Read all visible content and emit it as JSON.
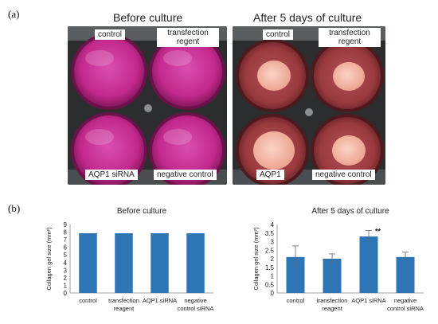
{
  "panel_a": {
    "label": "(a)",
    "before": {
      "title": "Before culture",
      "labels": {
        "top_left": "control",
        "top_right_1": "transfection",
        "top_right_2": "regent",
        "bottom_left": "AQP1 siRNA",
        "bottom_right": "negative control"
      }
    },
    "after": {
      "title": "After 5 days of culture",
      "labels": {
        "top_left": "control",
        "top_right_1": "transfection",
        "top_right_2": "regent",
        "bottom_left": "AQP1",
        "bottom_right": "negative control"
      }
    },
    "colors": {
      "plate": "#2b2d2e",
      "before_medium": "#c3298c",
      "after_medium": "#9a3a3e",
      "gel": "#f3b9a6"
    }
  },
  "panel_b": {
    "label": "(b)"
  },
  "chart_data": [
    {
      "type": "bar",
      "title": "Before culture",
      "categories": [
        [
          "control"
        ],
        [
          "transfection",
          "reagent"
        ],
        [
          "AQP1 siRNA"
        ],
        [
          "negative",
          "control siRNA"
        ]
      ],
      "values": [
        7.85,
        7.85,
        7.85,
        7.85
      ],
      "ylabel": "Collagen gel size (mm²)",
      "ylim": [
        0,
        9
      ],
      "yticks": [
        0,
        1,
        2,
        3,
        4,
        5,
        6,
        7,
        8,
        9
      ],
      "bar_color": "#2e75b6",
      "grid": false
    },
    {
      "type": "bar",
      "title": "After 5 days of culture",
      "categories": [
        [
          "control"
        ],
        [
          "transfection",
          "reagent"
        ],
        [
          "AQP1 siRNA"
        ],
        [
          "negative",
          "control siRNA"
        ]
      ],
      "values": [
        2.1,
        2.0,
        3.3,
        2.1
      ],
      "errors": [
        0.65,
        0.28,
        0.35,
        0.28
      ],
      "annotations": [
        "",
        "",
        "**",
        ""
      ],
      "ylabel": "Collagen gel size (mm²)",
      "ylim": [
        0,
        4
      ],
      "yticks": [
        0,
        0.5,
        1,
        1.5,
        2,
        2.5,
        3,
        3.5,
        4
      ],
      "bar_color": "#2e75b6",
      "grid": false
    }
  ]
}
